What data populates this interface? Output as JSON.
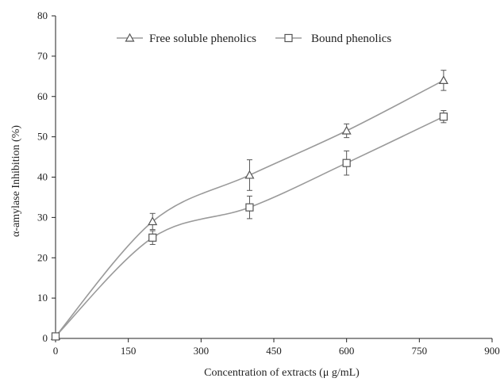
{
  "chart_data": {
    "type": "line",
    "title": "",
    "xlabel": "Concentration of extracts (μ g/mL)",
    "ylabel": "α-amylase Inhibition (%)",
    "xlim": [
      0,
      900
    ],
    "ylim": [
      0,
      80
    ],
    "xticks": [
      0,
      150,
      300,
      450,
      600,
      750,
      900
    ],
    "yticks": [
      0,
      10,
      20,
      30,
      40,
      50,
      60,
      70,
      80
    ],
    "grid": false,
    "legend_position": "top-center",
    "x": [
      0,
      200,
      400,
      600,
      800
    ],
    "series": [
      {
        "name": "Free soluble phenolics",
        "marker": "triangle",
        "values": [
          0.5,
          29.0,
          40.5,
          51.5,
          64.0
        ],
        "errors": [
          0.3,
          2.0,
          3.8,
          1.7,
          2.5
        ]
      },
      {
        "name": "Bound phenolics",
        "marker": "square",
        "values": [
          0.5,
          25.0,
          32.5,
          43.5,
          55.0
        ],
        "errors": [
          0.3,
          1.7,
          2.8,
          3.0,
          1.5
        ]
      }
    ],
    "colors": {
      "line": "#9a9a9a",
      "marker": "#555555",
      "axis": "#222222"
    }
  }
}
